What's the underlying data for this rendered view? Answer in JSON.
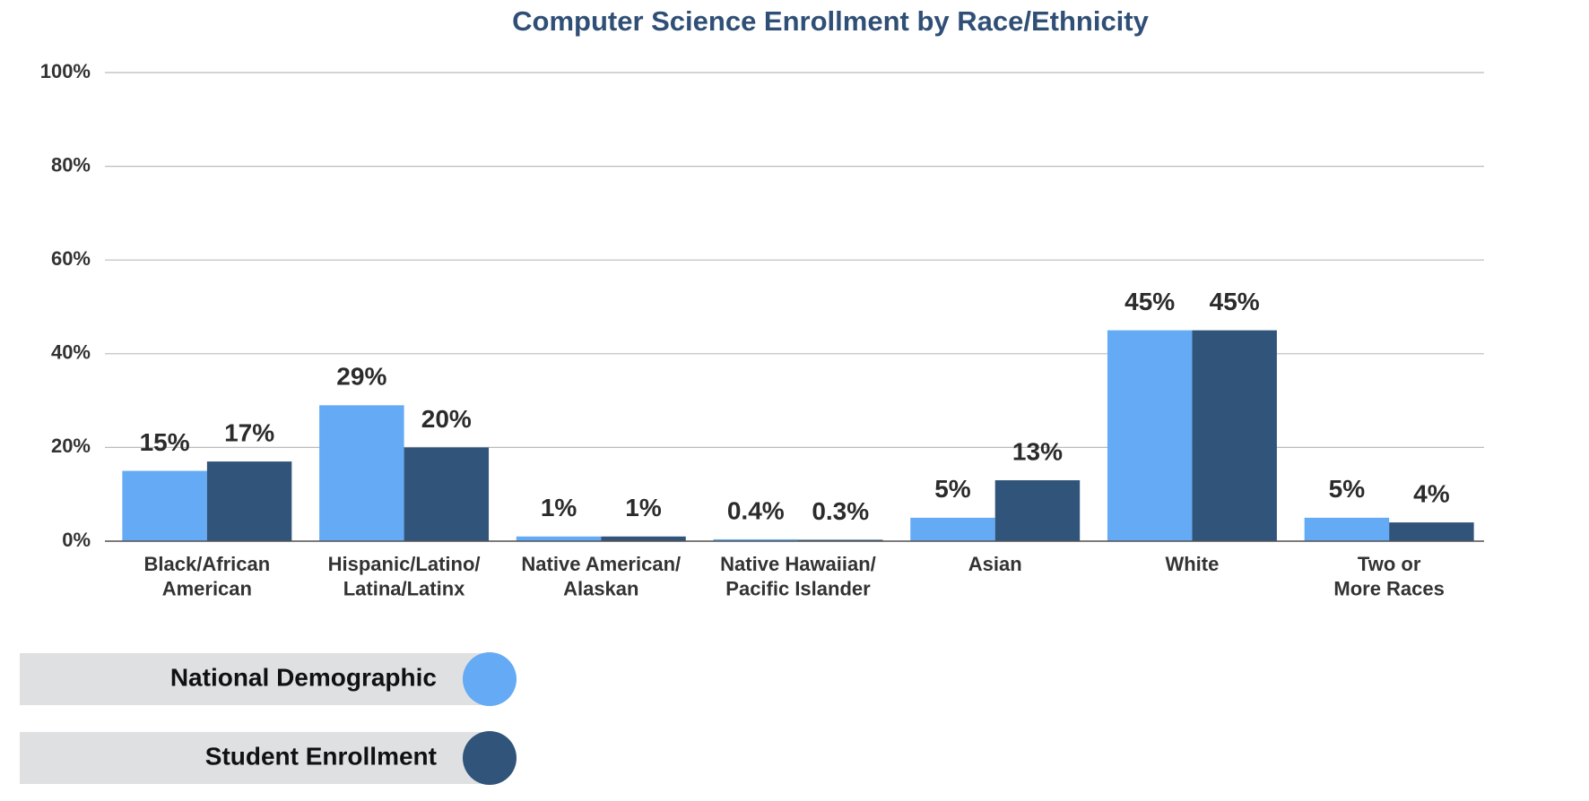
{
  "chart_data": {
    "type": "bar",
    "title": "Computer Science Enrollment by Race/Ethnicity",
    "categories": [
      "Black/African\nAmerican",
      "Hispanic/Latino/\nLatina/Latinx",
      "Native American/\nAlaskan",
      "Native Hawaiian/\nPacific Islander",
      "Asian",
      "White",
      "Two or\nMore Races"
    ],
    "series": [
      {
        "name": "National Demographic",
        "color": "#64aaf5",
        "values": [
          15,
          29,
          1,
          0.4,
          5,
          45,
          5
        ],
        "value_labels": [
          "15%",
          "29%",
          "1%",
          "0.4%",
          "5%",
          "45%",
          "5%"
        ]
      },
      {
        "name": "Student Enrollment",
        "color": "#31547a",
        "values": [
          17,
          20,
          1,
          0.3,
          13,
          45,
          4
        ],
        "value_labels": [
          "17%",
          "20%",
          "1%",
          "0.3%",
          "13%",
          "45%",
          "4%"
        ]
      }
    ],
    "ylim": [
      0,
      100
    ],
    "yticks": [
      {
        "value": 0,
        "label": "0%"
      },
      {
        "value": 20,
        "label": "20%"
      },
      {
        "value": 40,
        "label": "40%"
      },
      {
        "value": 60,
        "label": "60%"
      },
      {
        "value": 80,
        "label": "80%"
      },
      {
        "value": 100,
        "label": "100%"
      }
    ],
    "grid": true,
    "legend": "bottom-left"
  }
}
